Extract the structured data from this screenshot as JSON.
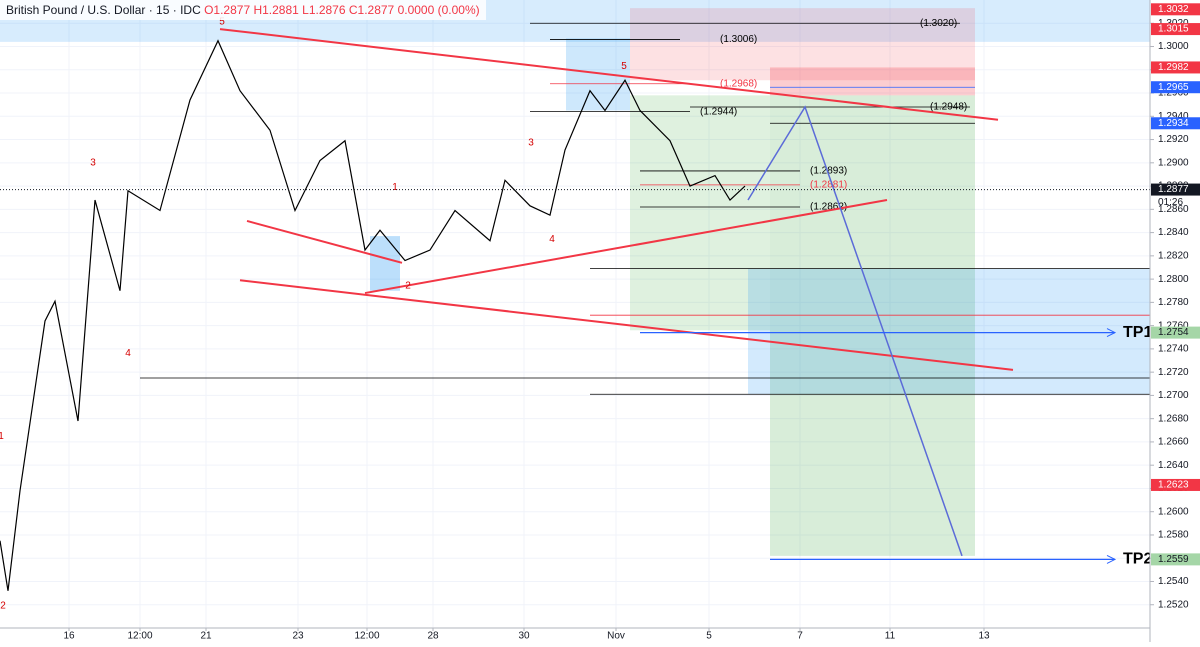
{
  "header": {
    "title": "British Pound / U.S. Dollar · 15 · IDC",
    "ohlc": "O1.2877 H1.2881 L1.2876 C1.2877 0.0000 (0.00%)",
    "countdown": "01:26"
  },
  "chart_data": {
    "type": "line",
    "color": "#000000",
    "x": [
      0,
      0.8,
      2,
      4.5,
      5.5,
      7.8,
      9.5,
      12,
      12.8,
      16,
      19,
      21.8,
      24,
      27,
      29.5,
      32,
      34.5,
      36.5,
      38,
      40.5,
      43,
      45.5,
      49,
      50.5,
      53,
      55,
      56.5,
      59,
      60.5,
      62.5,
      64,
      67,
      69,
      71.5,
      73,
      74.5
    ],
    "values": [
      1.2575,
      1.2532,
      1.2618,
      1.2764,
      1.2781,
      1.2678,
      1.2868,
      1.279,
      1.2876,
      1.2859,
      1.2954,
      1.3005,
      1.2962,
      1.2928,
      1.2859,
      1.2902,
      1.2919,
      1.2825,
      1.2842,
      1.2816,
      1.2825,
      1.2859,
      1.2833,
      1.2885,
      1.2863,
      1.2855,
      1.2911,
      1.2962,
      1.2945,
      1.2971,
      1.2945,
      1.2919,
      1.288,
      1.2889,
      1.2868,
      1.288
    ],
    "xlim": [
      0,
      115
    ],
    "ylim": [
      1.25,
      1.304
    ],
    "xticks": [
      {
        "value": 6.9,
        "label": "16"
      },
      {
        "value": 14,
        "label": "12:00"
      },
      {
        "value": 20.6,
        "label": "21"
      },
      {
        "value": 29.8,
        "label": "23"
      },
      {
        "value": 36.7,
        "label": "12:00"
      },
      {
        "value": 43.3,
        "label": "28"
      },
      {
        "value": 52.4,
        "label": "30"
      },
      {
        "value": 61.6,
        "label": "Nov"
      },
      {
        "value": 70.9,
        "label": "5"
      },
      {
        "value": 80,
        "label": "7"
      },
      {
        "value": 89,
        "label": "11"
      },
      {
        "value": 98.4,
        "label": "13"
      }
    ],
    "yticks": [
      {
        "value": 1.252,
        "label": "1.2520"
      },
      {
        "value": 1.254,
        "label": "1.2540"
      },
      {
        "value": 1.256,
        "label": "1.2560"
      },
      {
        "value": 1.258,
        "label": "1.2580"
      },
      {
        "value": 1.26,
        "label": "1.2600"
      },
      {
        "value": 1.262,
        "label": "1.2620"
      },
      {
        "value": 1.264,
        "label": "1.2640"
      },
      {
        "value": 1.266,
        "label": "1.2660"
      },
      {
        "value": 1.268,
        "label": "1.2680"
      },
      {
        "value": 1.27,
        "label": "1.2700"
      },
      {
        "value": 1.272,
        "label": "1.2720"
      },
      {
        "value": 1.274,
        "label": "1.2740"
      },
      {
        "value": 1.276,
        "label": "1.2760"
      },
      {
        "value": 1.278,
        "label": "1.2780"
      },
      {
        "value": 1.28,
        "label": "1.2800"
      },
      {
        "value": 1.282,
        "label": "1.2820"
      },
      {
        "value": 1.284,
        "label": "1.2840"
      },
      {
        "value": 1.286,
        "label": "1.2860"
      },
      {
        "value": 1.288,
        "label": "1.2880"
      },
      {
        "value": 1.29,
        "label": "1.2900"
      },
      {
        "value": 1.292,
        "label": "1.2920"
      },
      {
        "value": 1.294,
        "label": "1.2940"
      },
      {
        "value": 1.296,
        "label": "1.2960"
      },
      {
        "value": 1.298,
        "label": "1.2980"
      },
      {
        "value": 1.3,
        "label": "1.3000"
      },
      {
        "value": 1.302,
        "label": "1.3020"
      }
    ],
    "grid": true,
    "last_price": 1.2877,
    "zones": [
      {
        "x": [
          0,
          115
        ],
        "price": [
          1.304,
          1.3004
        ],
        "color": "rgba(33,150,243,0.18)"
      },
      {
        "x": [
          63,
          97.5
        ],
        "price": [
          1.3033,
          1.2971
        ],
        "color": "rgba(242,54,69,0.15)"
      },
      {
        "x": [
          77,
          97.5
        ],
        "price": [
          1.2982,
          1.2958
        ],
        "color": "rgba(242,54,69,0.25)"
      },
      {
        "x": [
          56.6,
          63
        ],
        "price": [
          1.3007,
          1.2945
        ],
        "color": "rgba(33,150,243,0.22)"
      },
      {
        "x": [
          63,
          77
        ],
        "price": [
          1.2958,
          1.2756
        ],
        "color": "rgba(76,175,80,0.18)"
      },
      {
        "x": [
          77,
          97.5
        ],
        "price": [
          1.2958,
          1.2562
        ],
        "color": "rgba(76,175,80,0.22)"
      },
      {
        "x": [
          74.8,
          115
        ],
        "price": [
          1.2809,
          1.2701
        ],
        "color": "rgba(33,150,243,0.2)"
      },
      {
        "x": [
          37,
          40
        ],
        "price": [
          1.2837,
          1.279
        ],
        "color": "rgba(33,150,243,0.3)"
      }
    ],
    "levels": [
      {
        "value": 1.302,
        "label": "(1.3020)",
        "x": [
          53,
          96
        ],
        "color": "#000000"
      },
      {
        "value": 1.3006,
        "label": "(1.3006)",
        "x": [
          55,
          68
        ],
        "color": "#000000"
      },
      {
        "value": 1.2968,
        "label": "(1.2968)",
        "x": [
          55,
          69
        ],
        "color": "#f23645"
      },
      {
        "value": 1.2944,
        "label": "(1.2944)",
        "x": [
          53,
          69
        ],
        "color": "#000000"
      },
      {
        "value": 1.2948,
        "label": "(1.2948)",
        "x": [
          69,
          97
        ],
        "color": "#000000"
      },
      {
        "value": 1.2893,
        "label": "(1.2893)",
        "x": [
          64,
          80
        ],
        "color": "#000000"
      },
      {
        "value": 1.2881,
        "label": "(1.2881)",
        "x": [
          64,
          80
        ],
        "color": "#f23645"
      },
      {
        "value": 1.2862,
        "label": "(1.2862)",
        "x": [
          64,
          80
        ],
        "color": "#000000"
      }
    ],
    "guides": [
      {
        "value": 1.2809,
        "x": [
          59,
          115
        ],
        "color": "#000000"
      },
      {
        "value": 1.2769,
        "x": [
          59,
          115
        ],
        "color": "#f23645"
      },
      {
        "value": 1.2715,
        "x": [
          14,
          115
        ],
        "color": "#000000"
      },
      {
        "value": 1.2701,
        "x": [
          59,
          115
        ],
        "color": "#000000"
      },
      {
        "value": 1.2965,
        "x": [
          77,
          97.5
        ],
        "color": "#2962ff"
      },
      {
        "value": 1.2934,
        "x": [
          77,
          97.5
        ],
        "color": "#000000"
      }
    ],
    "trendlines": [
      {
        "x": [
          22,
          99.8
        ],
        "price": [
          1.3015,
          1.2937
        ]
      },
      {
        "x": [
          24.7,
          40.2
        ],
        "price": [
          1.285,
          1.2814
        ]
      },
      {
        "x": [
          36.5,
          88.7
        ],
        "price": [
          1.2788,
          1.2868
        ]
      },
      {
        "x": [
          24,
          101.3
        ],
        "price": [
          1.2799,
          1.2722
        ]
      }
    ],
    "projection": {
      "x": [
        74.8,
        80.5,
        96.2
      ],
      "price": [
        1.2868,
        1.2948,
        1.2562
      ]
    },
    "targets": [
      {
        "label": "TP1",
        "value": 1.2754,
        "x": [
          64,
          111.5
        ]
      },
      {
        "label": "TP2",
        "value": 1.2559,
        "x": [
          77,
          111.5
        ]
      }
    ],
    "waves": [
      {
        "text": "5",
        "x": 22.2,
        "price": 1.3021
      },
      {
        "text": "3",
        "x": 9.3,
        "price": 1.29
      },
      {
        "text": "4",
        "x": 12.8,
        "price": 1.2736
      },
      {
        "text": "1",
        "x": 39.5,
        "price": 1.2879
      },
      {
        "text": "2",
        "x": 40.8,
        "price": 1.2794
      },
      {
        "text": "3",
        "x": 53.1,
        "price": 1.2917
      },
      {
        "text": "4",
        "x": 55.2,
        "price": 1.2834
      },
      {
        "text": "5",
        "x": 62.4,
        "price": 1.2983
      },
      {
        "text": "1",
        "x": 0.1,
        "price": 1.2665
      },
      {
        "text": "2",
        "x": 0.3,
        "price": 1.2519
      }
    ],
    "badges": [
      {
        "value": 1.3032,
        "label": "1.3032",
        "color": "#f23645"
      },
      {
        "value": 1.3015,
        "label": "1.3015",
        "color": "#f23645"
      },
      {
        "value": 1.2982,
        "label": "1.2982",
        "color": "#f23645"
      },
      {
        "value": 1.2965,
        "label": "1.2965",
        "color": "#2962ff"
      },
      {
        "value": 1.2934,
        "label": "1.2934",
        "color": "#2962ff"
      },
      {
        "value": 1.2877,
        "label": "1.2877",
        "color": "#131722"
      },
      {
        "value": 1.2754,
        "label": "1.2754",
        "color": "#a5d6a7"
      },
      {
        "value": 1.2623,
        "label": "1.2623",
        "color": "#f23645"
      },
      {
        "value": 1.2559,
        "label": "1.2559",
        "color": "#a5d6a7"
      }
    ]
  }
}
